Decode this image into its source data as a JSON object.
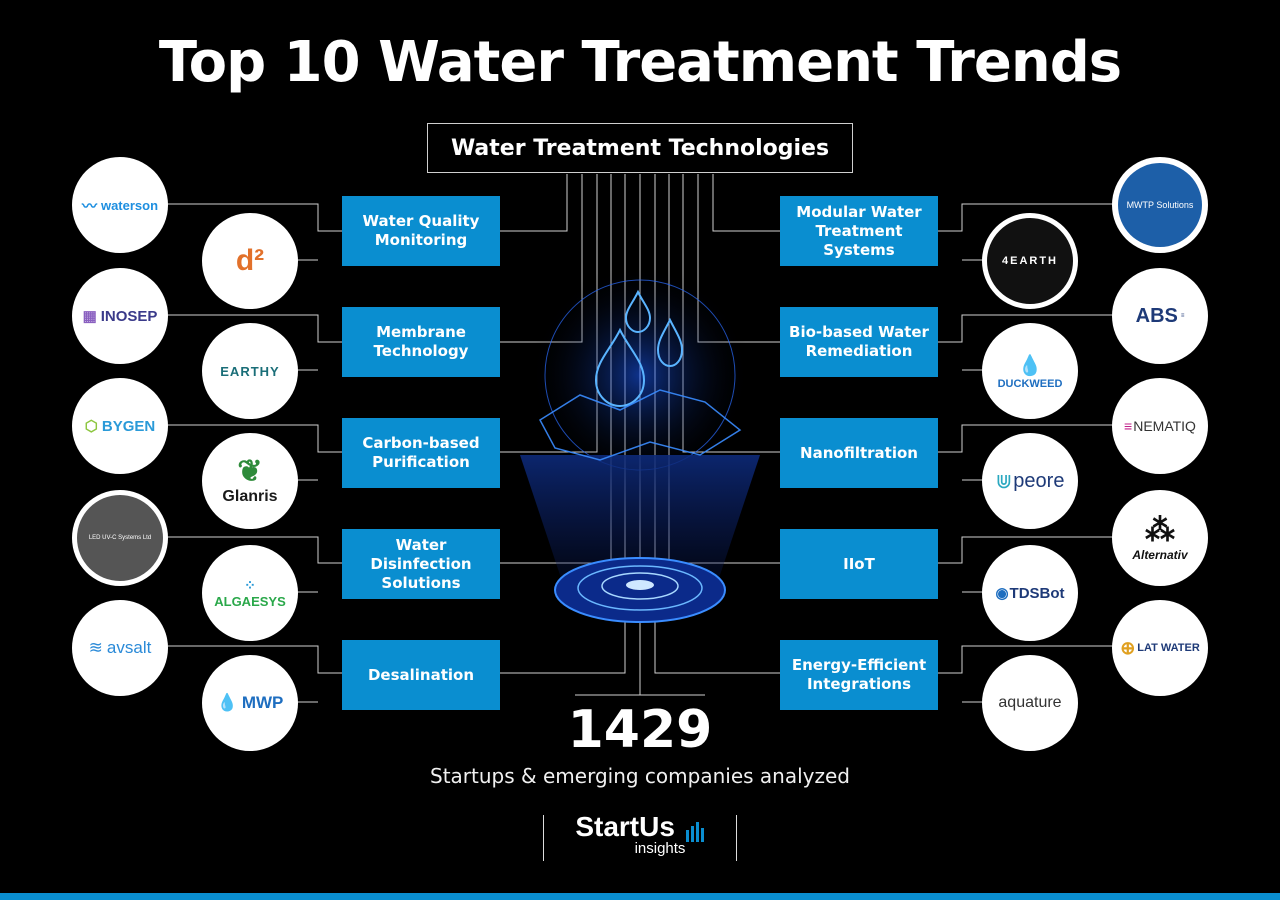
{
  "title": "Top 10 Water Treatment Trends",
  "center_label": "Water Treatment Technologies",
  "left_trends": [
    {
      "label": "Water Quality Monitoring",
      "logos": [
        "waterson",
        "d²"
      ]
    },
    {
      "label": "Membrane Technology",
      "logos": [
        "INOSEP",
        "EARTHY"
      ]
    },
    {
      "label": "Carbon-based Purification",
      "logos": [
        "BYGEN",
        "Glanris"
      ]
    },
    {
      "label": "Water Disinfection Solutions",
      "logos": [
        "LED UV-C Systems Ltd",
        "ALGAESYS"
      ]
    },
    {
      "label": "Desalination",
      "logos": [
        "avsalt",
        "MWP"
      ]
    }
  ],
  "right_trends": [
    {
      "label": "Modular Water Treatment Systems",
      "logos": [
        "MWTP Solutions",
        "4EARTH"
      ]
    },
    {
      "label": "Bio-based Water Remediation",
      "logos": [
        "ABS",
        "DUCKWEED"
      ]
    },
    {
      "label": "Nanofiltration",
      "logos": [
        "NEMATIQ",
        "peore"
      ]
    },
    {
      "label": "IIoT",
      "logos": [
        "Alternativ",
        "TDSBot"
      ]
    },
    {
      "label": "Energy-Efficient Integrations",
      "logos": [
        "LAT WATER",
        "aquature"
      ]
    }
  ],
  "stat": {
    "number": "1429",
    "caption": "Startups & emerging companies analyzed"
  },
  "brand": {
    "name": "StartUs",
    "sub": "insights"
  },
  "colors": {
    "accent": "#0a8ed0",
    "background": "#000000"
  }
}
